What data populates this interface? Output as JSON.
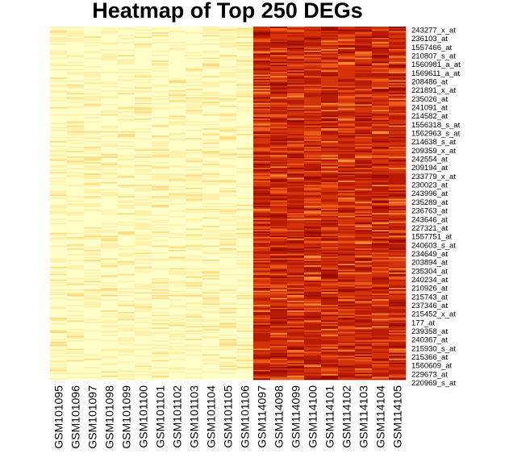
{
  "chart_data": {
    "type": "heatmap",
    "title": "Heatmap of Top 250 DEGs",
    "columns": [
      "GSM101095",
      "GSM101096",
      "GSM101097",
      "GSM101098",
      "GSM101099",
      "GSM101100",
      "GSM101101",
      "GSM101102",
      "GSM101103",
      "GSM101104",
      "GSM101105",
      "GSM101106",
      "GSM114097",
      "GSM114098",
      "GSM114099",
      "GSM114100",
      "GSM114101",
      "GSM114102",
      "GSM114103",
      "GSM114104",
      "GSM114105"
    ],
    "row_labels_shown": [
      "243277_x_at",
      "236103_at",
      "1557466_at",
      "210807_s_at",
      "1560981_a_at",
      "1569611_a_at",
      "208486_at",
      "221891_x_at",
      "235026_at",
      "241091_at",
      "214582_at",
      "1556318_s_at",
      "1562963_s_at",
      "214638_s_at",
      "209359_x_at",
      "242554_at",
      "209194_at",
      "233779_x_at",
      "230023_at",
      "243996_at",
      "235289_at",
      "236763_at",
      "243646_at",
      "227321_at",
      "1557751_at",
      "240603_s_at",
      "234649_at",
      "203894_at",
      "235304_at",
      "240234_at",
      "210926_at",
      "215743_at",
      "237346_at",
      "215452_x_at",
      "177_at",
      "239358_at",
      "240367_at",
      "215930_s_at",
      "215366_at",
      "1560609_at",
      "229673_at",
      "220969_s_at"
    ],
    "row_count": 250,
    "groups": [
      {
        "columns": 12,
        "level": "low"
      },
      {
        "columns": 9,
        "level": "high"
      }
    ],
    "color_scale": [
      "#FFFFC8",
      "#FFF0AA",
      "#FEDD82",
      "#FDB85A",
      "#F98A32",
      "#EC5A18",
      "#D43308",
      "#B71B03",
      "#9A0A00"
    ]
  }
}
